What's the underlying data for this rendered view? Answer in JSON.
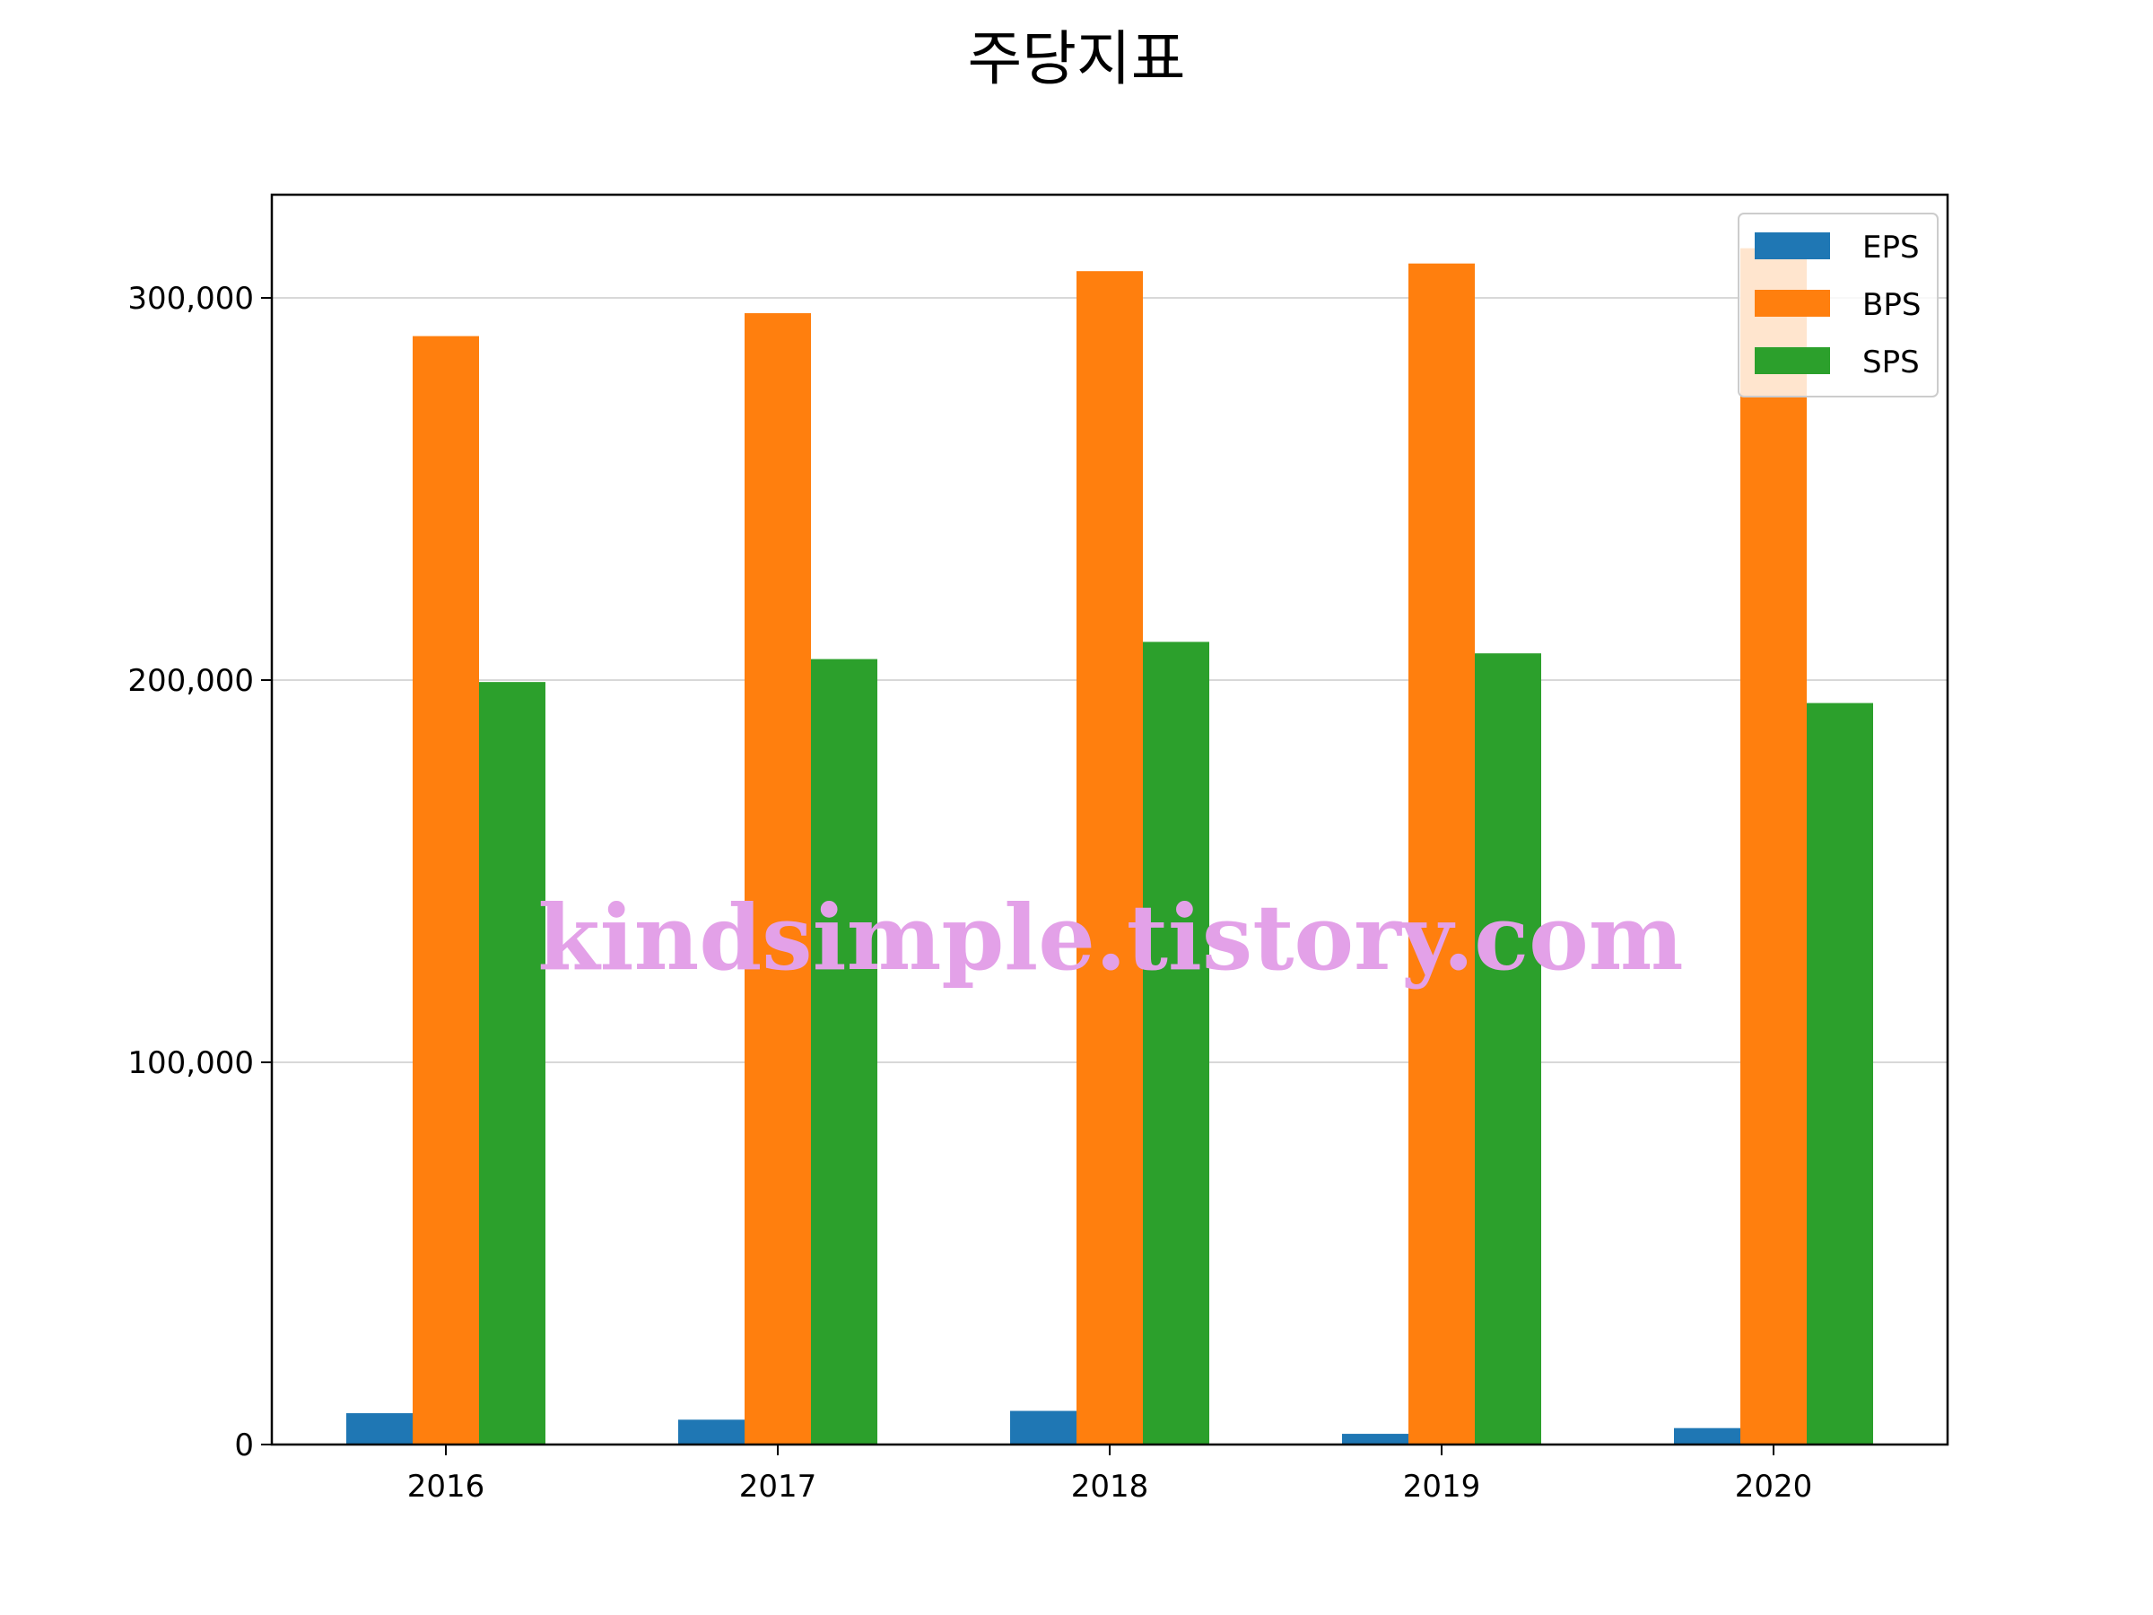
{
  "chart_data": {
    "type": "bar",
    "title": "주당지표",
    "xlabel": "",
    "ylabel": "",
    "categories": [
      "2016",
      "2017",
      "2018",
      "2019",
      "2020"
    ],
    "series": [
      {
        "name": "EPS",
        "color": "#1f77b4",
        "values": [
          8200,
          6500,
          8800,
          2800,
          4300
        ]
      },
      {
        "name": "BPS",
        "color": "#ff7f0e",
        "values": [
          290000,
          296000,
          307000,
          309000,
          313000
        ]
      },
      {
        "name": "SPS",
        "color": "#2ca02c",
        "values": [
          199500,
          205500,
          210000,
          207000,
          194000
        ]
      }
    ],
    "ylim": [
      0,
      327000
    ],
    "yticks": [
      0,
      100000,
      200000,
      300000
    ],
    "ytick_labels": [
      "0",
      "100,000",
      "200,000",
      "300,000"
    ],
    "grid": "y",
    "legend_position": "top-right"
  },
  "watermark_text": "kindsimple.tistory.com"
}
